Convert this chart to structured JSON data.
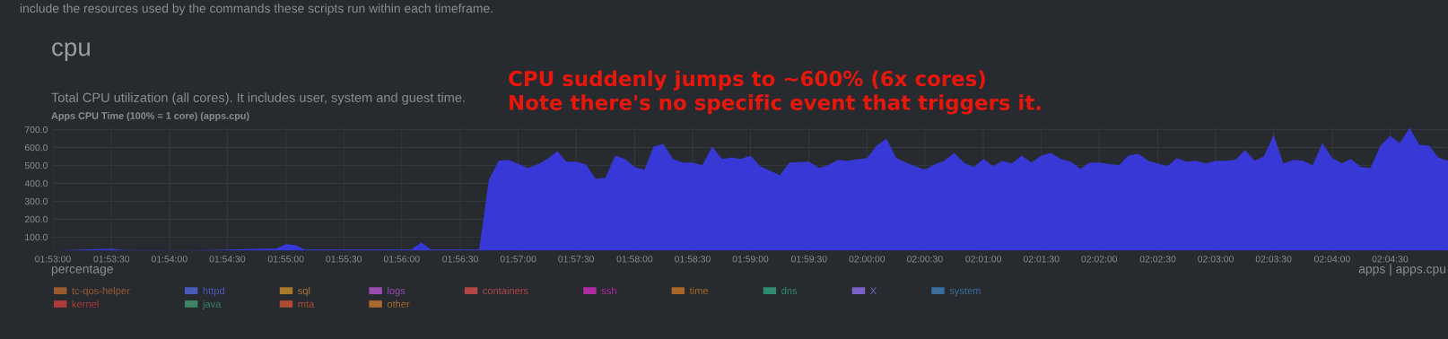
{
  "chart_data": {
    "type": "area",
    "title": "cpu",
    "subtitle": "Total CPU utilization (all cores). It includes user, system and guest time.",
    "annotations": [
      "include the resources used by the commands these scripts run within each timeframe.",
      "Apps CPU Time (100% = 1 core) (apps.cpu)",
      "CPU suddenly jumps to ~600% (6x cores)\nNote there's no specific event that triggers it.",
      "percentage",
      "apps | apps.cpu"
    ],
    "series": [
      {
        "color": "#3838d6",
        "x": [
          1.8847,
          1.8917,
          1.8931,
          1.9028,
          1.9139,
          1.9153,
          1.9167,
          1.9181,
          1.9194,
          1.9347,
          1.9361,
          1.9375,
          1.9444,
          1.9458,
          1.9472,
          1.9486,
          1.9514,
          1.9528,
          1.9542,
          1.9556,
          1.9569,
          1.9583,
          1.9597,
          1.9611,
          1.9625,
          1.9639,
          1.9653,
          1.9667,
          1.9681,
          1.9694,
          1.9708,
          1.9722,
          1.9736,
          1.975,
          1.9764,
          1.9778,
          1.9792,
          1.9806,
          1.9819,
          1.9833,
          1.9847,
          1.9861,
          1.9875,
          1.9889,
          1.9917,
          1.9931,
          1.9944,
          1.9958,
          1.9972,
          2.0,
          2.0014,
          2.0028,
          2.0042,
          2.0056,
          2.0069,
          2.0083,
          2.0097,
          2.0111,
          2.0125,
          2.0139,
          2.0153,
          2.0167,
          2.0181,
          2.0194,
          2.0208,
          2.0222,
          2.0236,
          2.025,
          2.0264,
          2.0278,
          2.0292,
          2.0306,
          2.0319,
          2.0333,
          2.0361,
          2.0375,
          2.0389,
          2.0403,
          2.0417,
          2.0431,
          2.0444,
          2.0458,
          2.0472,
          2.0486,
          2.05,
          2.0514,
          2.0528,
          2.0542,
          2.0556,
          2.0569,
          2.0583,
          2.0597,
          2.0611,
          2.0625,
          2.0639,
          2.0653,
          2.0667,
          2.0681,
          2.0694,
          2.0708,
          2.0722,
          2.0736,
          2.075,
          2.0764,
          2.0778,
          2.0792,
          2.0806,
          2.0819,
          2.0833
        ],
        "values": [
          27,
          35,
          28,
          25,
          35,
          35,
          60,
          55,
          30,
          30,
          70,
          30,
          30,
          420,
          525,
          530,
          485,
          505,
          535,
          580,
          520,
          520,
          505,
          425,
          430,
          555,
          535,
          490,
          475,
          605,
          620,
          535,
          515,
          515,
          500,
          605,
          535,
          545,
          535,
          555,
          495,
          470,
          445,
          515,
          520,
          485,
          500,
          530,
          525,
          540,
          610,
          650,
          540,
          515,
          495,
          475,
          505,
          525,
          570,
          515,
          490,
          535,
          495,
          525,
          510,
          555,
          515,
          555,
          570,
          535,
          520,
          480,
          515,
          515,
          500,
          555,
          565,
          525,
          510,
          495,
          540,
          520,
          525,
          510,
          525,
          525,
          530,
          585,
          525,
          550,
          670,
          510,
          530,
          525,
          500,
          625,
          540,
          510,
          535,
          490,
          485,
          610,
          665,
          625,
          710,
          615,
          610,
          545,
          525
        ]
      },
      {
        "name": "tc-qos-helper",
        "color": "#9a5a32"
      },
      {
        "name": "httpd",
        "color": "#4a5ab8"
      },
      {
        "name": "sql",
        "color": "#a8792c"
      },
      {
        "name": "logs",
        "color": "#9a4cb4"
      },
      {
        "name": "containers",
        "color": "#b04848"
      },
      {
        "name": "ssh",
        "color": "#b02aa0"
      },
      {
        "name": "time",
        "color": "#a86526"
      },
      {
        "name": "dns",
        "color": "#2e8a70"
      },
      {
        "name": "X",
        "color": "#7a62c8"
      },
      {
        "name": "system",
        "color": "#3c6e9c"
      },
      {
        "name": "kernel",
        "color": "#b03a3a"
      },
      {
        "name": "java",
        "color": "#3c8464"
      },
      {
        "name": "mta",
        "color": "#b04a32"
      },
      {
        "name": "other",
        "color": "#a86a2e"
      }
    ],
    "xlim": [
      1.8833,
      2.0833
    ],
    "xticks": [
      {
        "value": 1.8833,
        "label": "01:53:00"
      },
      {
        "value": 1.8917,
        "label": "01:53:30"
      },
      {
        "value": 1.9,
        "label": "01:54:00"
      },
      {
        "value": 1.9083,
        "label": "01:54:30"
      },
      {
        "value": 1.9167,
        "label": "01:55:00"
      },
      {
        "value": 1.925,
        "label": "01:55:30"
      },
      {
        "value": 1.9333,
        "label": "01:56:00"
      },
      {
        "value": 1.9417,
        "label": "01:56:30"
      },
      {
        "value": 1.95,
        "label": "01:57:00"
      },
      {
        "value": 1.9583,
        "label": "01:57:30"
      },
      {
        "value": 1.9667,
        "label": "01:58:00"
      },
      {
        "value": 1.975,
        "label": "01:58:30"
      },
      {
        "value": 1.9833,
        "label": "01:59:00"
      },
      {
        "value": 1.9917,
        "label": "01:59:30"
      },
      {
        "value": 2.0,
        "label": "02:00:00"
      },
      {
        "value": 2.0083,
        "label": "02:00:30"
      },
      {
        "value": 2.0167,
        "label": "02:01:00"
      },
      {
        "value": 2.025,
        "label": "02:01:30"
      },
      {
        "value": 2.0333,
        "label": "02:02:00"
      },
      {
        "value": 2.0417,
        "label": "02:02:30"
      },
      {
        "value": 2.05,
        "label": "02:03:00"
      },
      {
        "value": 2.0583,
        "label": "02:03:30"
      },
      {
        "value": 2.0667,
        "label": "02:04:00"
      },
      {
        "value": 2.075,
        "label": "02:04:30"
      }
    ],
    "ylim": [
      25,
      712
    ],
    "yticks": [
      {
        "value": 100,
        "label": "100.0"
      },
      {
        "value": 200,
        "label": "200.0"
      },
      {
        "value": 300,
        "label": "300.0"
      },
      {
        "value": 400,
        "label": "400.0"
      },
      {
        "value": 500,
        "label": "500.0"
      },
      {
        "value": 600,
        "label": "600.0"
      },
      {
        "value": 700,
        "label": "700.0"
      }
    ],
    "grid": true,
    "legend": "bottom"
  }
}
